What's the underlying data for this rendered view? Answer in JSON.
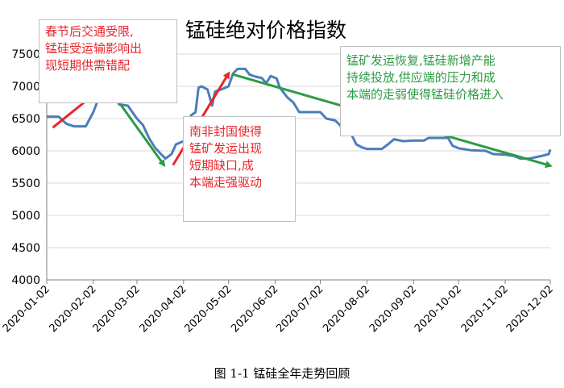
{
  "chart_data": {
    "type": "line",
    "title": "锰硅绝对价格指数",
    "caption": "图 1-1 锰硅全年走势回顾",
    "xlabel": "",
    "ylabel": "",
    "ylim": [
      4000,
      7500
    ],
    "yticks": [
      4000,
      4500,
      5000,
      5500,
      6000,
      6500,
      7000,
      7500
    ],
    "x_tick_labels": [
      "2020-01-02",
      "2020-02-02",
      "2020-03-02",
      "2020-04-02",
      "2020-05-02",
      "2020-06-02",
      "2020-07-02",
      "2020-08-02",
      "2020-09-02",
      "2020-10-02",
      "2020-11-02",
      "2020-12-02"
    ],
    "x_start": "2020-01-02",
    "x_end": "2020-12-02",
    "grid": "horizontal",
    "series": [
      {
        "color": "#4a7ebb",
        "points": [
          [
            "2020-01-02",
            6530
          ],
          [
            "2020-01-10",
            6530
          ],
          [
            "2020-01-15",
            6420
          ],
          [
            "2020-01-20",
            6380
          ],
          [
            "2020-01-28",
            6380
          ],
          [
            "2020-02-02",
            6600
          ],
          [
            "2020-02-05",
            6780
          ],
          [
            "2020-02-08",
            6980
          ],
          [
            "2020-02-16",
            6980
          ],
          [
            "2020-02-19",
            6720
          ],
          [
            "2020-02-25",
            6700
          ],
          [
            "2020-03-02",
            6500
          ],
          [
            "2020-03-06",
            6400
          ],
          [
            "2020-03-10",
            6200
          ],
          [
            "2020-03-14",
            6050
          ],
          [
            "2020-03-18",
            5950
          ],
          [
            "2020-03-21",
            5880
          ],
          [
            "2020-03-25",
            5950
          ],
          [
            "2020-03-28",
            6100
          ],
          [
            "2020-04-02",
            6150
          ],
          [
            "2020-04-05",
            6250
          ],
          [
            "2020-04-07",
            6550
          ],
          [
            "2020-04-10",
            6600
          ],
          [
            "2020-04-12",
            6980
          ],
          [
            "2020-04-14",
            7000
          ],
          [
            "2020-04-18",
            6950
          ],
          [
            "2020-04-21",
            6700
          ],
          [
            "2020-04-23",
            6920
          ],
          [
            "2020-04-27",
            6950
          ],
          [
            "2020-05-02",
            7000
          ],
          [
            "2020-05-05",
            7200
          ],
          [
            "2020-05-08",
            7270
          ],
          [
            "2020-05-13",
            7270
          ],
          [
            "2020-05-16",
            7180
          ],
          [
            "2020-05-20",
            7150
          ],
          [
            "2020-05-24",
            7130
          ],
          [
            "2020-05-27",
            7050
          ],
          [
            "2020-05-30",
            7160
          ],
          [
            "2020-06-03",
            7120
          ],
          [
            "2020-06-05",
            6980
          ],
          [
            "2020-06-10",
            6830
          ],
          [
            "2020-06-14",
            6750
          ],
          [
            "2020-06-18",
            6600
          ],
          [
            "2020-06-25",
            6600
          ],
          [
            "2020-07-02",
            6600
          ],
          [
            "2020-07-06",
            6500
          ],
          [
            "2020-07-12",
            6470
          ],
          [
            "2020-07-15",
            6400
          ],
          [
            "2020-07-18",
            6300
          ],
          [
            "2020-07-23",
            6240
          ],
          [
            "2020-07-26",
            6100
          ],
          [
            "2020-07-30",
            6050
          ],
          [
            "2020-08-02",
            6030
          ],
          [
            "2020-08-12",
            6030
          ],
          [
            "2020-08-16",
            6100
          ],
          [
            "2020-08-20",
            6180
          ],
          [
            "2020-08-26",
            6150
          ],
          [
            "2020-09-02",
            6160
          ],
          [
            "2020-09-09",
            6160
          ],
          [
            "2020-09-12",
            6200
          ],
          [
            "2020-09-20",
            6200
          ],
          [
            "2020-09-25",
            6200
          ],
          [
            "2020-09-28",
            6080
          ],
          [
            "2020-10-02",
            6040
          ],
          [
            "2020-10-10",
            6010
          ],
          [
            "2020-10-20",
            6000
          ],
          [
            "2020-10-25",
            5950
          ],
          [
            "2020-11-02",
            5940
          ],
          [
            "2020-11-08",
            5920
          ],
          [
            "2020-11-12",
            5880
          ],
          [
            "2020-11-18",
            5880
          ],
          [
            "2020-11-22",
            5900
          ],
          [
            "2020-11-26",
            5920
          ],
          [
            "2020-12-01",
            5950
          ],
          [
            "2020-12-02",
            6020
          ]
        ]
      }
    ],
    "annotations": [
      {
        "text_lines": [
          "春节后交通受限,",
          "锰硅受运输影响出",
          "现短期供需错配"
        ],
        "color": "#e8262b",
        "arrow": {
          "from": [
            "2020-01-06",
            6360
          ],
          "to": [
            "2020-02-06",
            6940
          ],
          "color": "#e8262b"
        }
      },
      {
        "text_lines": [
          "南非封国使得",
          "锰矿发运出现",
          "短期缺口,成",
          "本端走强驱动"
        ],
        "color": "#e8262b",
        "arrow": {
          "from": [
            "2020-03-26",
            5780
          ],
          "to": [
            "2020-05-02",
            7200
          ],
          "color": "#e8262b"
        }
      },
      {
        "text_lines": [],
        "color": "#2e9b45",
        "arrow": {
          "from": [
            "2020-02-17",
            6820
          ],
          "to": [
            "2020-03-20",
            5780
          ],
          "color": "#2e9b45"
        }
      },
      {
        "text_lines": [
          "锰矿发运恢复,锰硅新增产能",
          "持续投放,供应端的压力和成",
          "本端的走弱使得锰硅价格进入"
        ],
        "color": "#2e9b45",
        "arrow": {
          "from": [
            "2020-05-04",
            7190
          ],
          "to": [
            "2020-12-02",
            5770
          ],
          "color": "#2e9b45"
        }
      }
    ]
  }
}
